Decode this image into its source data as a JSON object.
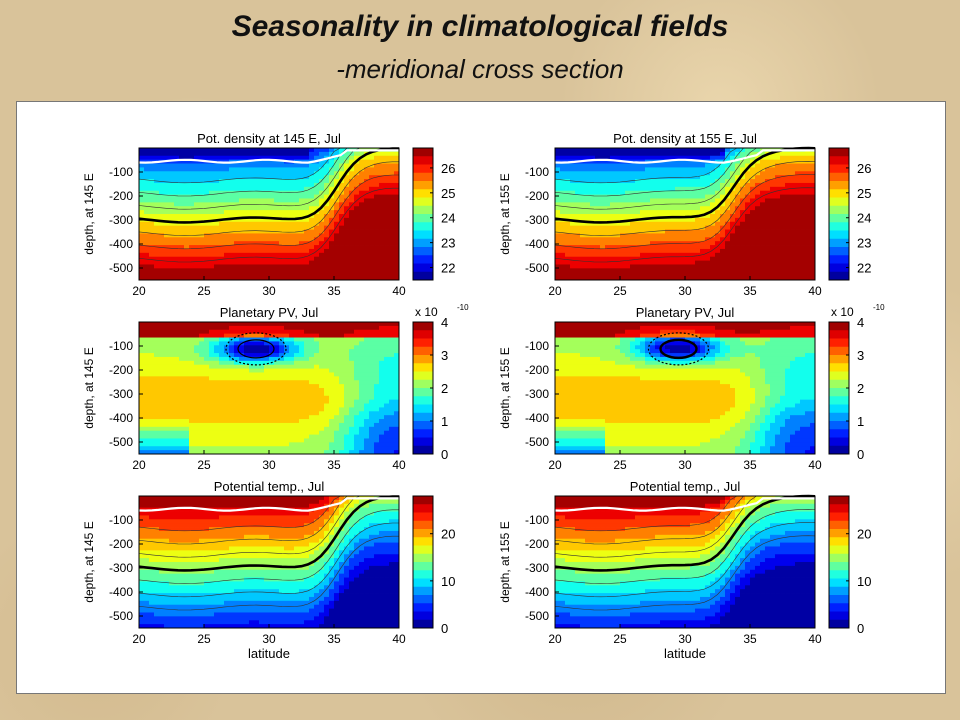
{
  "header": {
    "title": "Seasonality in climatological fields",
    "subtitle": "-meridional cross section"
  },
  "chart_data": [
    {
      "type": "heatmap",
      "field": "density",
      "title": "Pot. density at 145 E, Jul",
      "ylabel": "depth, at 145 E",
      "xlabel": "",
      "x_ticks": [
        "20",
        "25",
        "30",
        "35",
        "40"
      ],
      "y_ticks": [
        "-100",
        "-200",
        "-300",
        "-400",
        "-500"
      ],
      "xlim": [
        20,
        40
      ],
      "ylim": [
        -550,
        0
      ],
      "colorbar_ticks": [
        "26",
        "25",
        "24",
        "23",
        "22"
      ],
      "colorbar_range": [
        21.5,
        26.8
      ],
      "colorbar_multiplier": ""
    },
    {
      "type": "heatmap",
      "field": "density",
      "title": "Pot. density at 155 E, Jul",
      "ylabel": "depth, at 155 E",
      "xlabel": "",
      "x_ticks": [
        "20",
        "25",
        "30",
        "35",
        "40"
      ],
      "y_ticks": [
        "-100",
        "-200",
        "-300",
        "-400",
        "-500"
      ],
      "xlim": [
        20,
        40
      ],
      "ylim": [
        -550,
        0
      ],
      "colorbar_ticks": [
        "26",
        "25",
        "24",
        "23",
        "22"
      ],
      "colorbar_range": [
        21.5,
        26.8
      ],
      "colorbar_multiplier": ""
    },
    {
      "type": "heatmap",
      "field": "pv",
      "title": "Planetary PV, Jul",
      "ylabel": "depth, at 145 E",
      "xlabel": "",
      "x_ticks": [
        "20",
        "25",
        "30",
        "35",
        "40"
      ],
      "y_ticks": [
        "-100",
        "-200",
        "-300",
        "-400",
        "-500"
      ],
      "xlim": [
        20,
        40
      ],
      "ylim": [
        -550,
        0
      ],
      "colorbar_ticks": [
        "4",
        "3",
        "2",
        "1",
        "0"
      ],
      "colorbar_range": [
        0,
        4
      ],
      "colorbar_multiplier": "x 10"
    },
    {
      "type": "heatmap",
      "field": "pv",
      "title": "Planetary PV, Jul",
      "ylabel": "depth, at 155 E",
      "xlabel": "",
      "x_ticks": [
        "20",
        "25",
        "30",
        "35",
        "40"
      ],
      "y_ticks": [
        "-100",
        "-200",
        "-300",
        "-400",
        "-500"
      ],
      "xlim": [
        20,
        40
      ],
      "ylim": [
        -550,
        0
      ],
      "colorbar_ticks": [
        "4",
        "3",
        "2",
        "1",
        "0"
      ],
      "colorbar_range": [
        0,
        4
      ],
      "colorbar_multiplier": "x 10"
    },
    {
      "type": "heatmap",
      "field": "temp",
      "title": "Potential temp., Jul",
      "ylabel": "depth, at 145 E",
      "xlabel": "latitude",
      "x_ticks": [
        "20",
        "25",
        "30",
        "35",
        "40"
      ],
      "y_ticks": [
        "-100",
        "-200",
        "-300",
        "-400",
        "-500"
      ],
      "xlim": [
        20,
        40
      ],
      "ylim": [
        -550,
        0
      ],
      "colorbar_ticks": [
        "20",
        "10",
        "0"
      ],
      "colorbar_range": [
        0,
        28
      ],
      "colorbar_multiplier": ""
    },
    {
      "type": "heatmap",
      "field": "temp",
      "title": "Potential temp., Jul",
      "ylabel": "depth, at 155 E",
      "xlabel": "latitude",
      "x_ticks": [
        "20",
        "25",
        "30",
        "35",
        "40"
      ],
      "y_ticks": [
        "-100",
        "-200",
        "-300",
        "-400",
        "-500"
      ],
      "xlim": [
        20,
        40
      ],
      "ylim": [
        -550,
        0
      ],
      "colorbar_ticks": [
        "20",
        "10",
        "0"
      ],
      "colorbar_range": [
        0,
        28
      ],
      "colorbar_multiplier": ""
    }
  ],
  "exponent": "-10"
}
